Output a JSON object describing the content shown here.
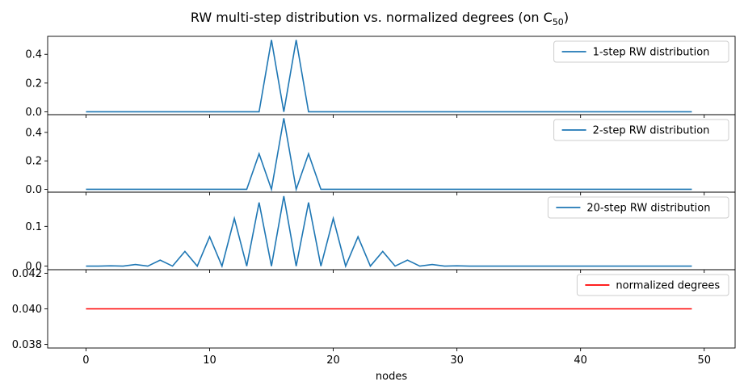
{
  "title": "RW multi-step distribution vs. normalized degrees (on C",
  "title_subscript": "50",
  "title_close": ")",
  "xlabel": "nodes",
  "x_ticks": [
    0,
    10,
    20,
    30,
    40,
    50
  ],
  "x_range": [
    -3.1,
    52.5
  ],
  "chart_data": [
    {
      "type": "line",
      "title": "",
      "xlabel": "",
      "ylabel": "",
      "legend_position": "upper-right",
      "ylim": [
        -0.02,
        0.525
      ],
      "y_ticks": [
        0.0,
        0.2,
        0.4
      ],
      "y_tick_labels": [
        "0.0",
        "0.2",
        "0.4"
      ],
      "series": [
        {
          "name": "1-step RW distribution",
          "color": "#1f77b4",
          "x": [
            0,
            1,
            2,
            3,
            4,
            5,
            6,
            7,
            8,
            9,
            10,
            11,
            12,
            13,
            14,
            15,
            16,
            17,
            18,
            19,
            20,
            21,
            22,
            23,
            24,
            25,
            26,
            27,
            28,
            29,
            30,
            31,
            32,
            33,
            34,
            35,
            36,
            37,
            38,
            39,
            40,
            41,
            42,
            43,
            44,
            45,
            46,
            47,
            48,
            49
          ],
          "values": [
            0,
            0,
            0,
            0,
            0,
            0,
            0,
            0,
            0,
            0,
            0,
            0,
            0,
            0,
            0,
            0.5,
            0,
            0.5,
            0,
            0,
            0,
            0,
            0,
            0,
            0,
            0,
            0,
            0,
            0,
            0,
            0,
            0,
            0,
            0,
            0,
            0,
            0,
            0,
            0,
            0,
            0,
            0,
            0,
            0,
            0,
            0,
            0,
            0,
            0,
            0
          ]
        }
      ]
    },
    {
      "type": "line",
      "title": "",
      "xlabel": "",
      "ylabel": "",
      "legend_position": "upper-right",
      "ylim": [
        -0.02,
        0.525
      ],
      "y_ticks": [
        0.0,
        0.2,
        0.4
      ],
      "y_tick_labels": [
        "0.0",
        "0.2",
        "0.4"
      ],
      "series": [
        {
          "name": "2-step RW distribution",
          "color": "#1f77b4",
          "x": [
            0,
            1,
            2,
            3,
            4,
            5,
            6,
            7,
            8,
            9,
            10,
            11,
            12,
            13,
            14,
            15,
            16,
            17,
            18,
            19,
            20,
            21,
            22,
            23,
            24,
            25,
            26,
            27,
            28,
            29,
            30,
            31,
            32,
            33,
            34,
            35,
            36,
            37,
            38,
            39,
            40,
            41,
            42,
            43,
            44,
            45,
            46,
            47,
            48,
            49
          ],
          "values": [
            0,
            0,
            0,
            0,
            0,
            0,
            0,
            0,
            0,
            0,
            0,
            0,
            0,
            0,
            0.25,
            0,
            0.5,
            0,
            0.25,
            0,
            0,
            0,
            0,
            0,
            0,
            0,
            0,
            0,
            0,
            0,
            0,
            0,
            0,
            0,
            0,
            0,
            0,
            0,
            0,
            0,
            0,
            0,
            0,
            0,
            0,
            0,
            0,
            0,
            0,
            0
          ]
        }
      ]
    },
    {
      "type": "line",
      "title": "",
      "xlabel": "",
      "ylabel": "",
      "legend_position": "upper-right",
      "ylim": [
        -0.009,
        0.186
      ],
      "y_ticks": [
        0.0,
        0.1
      ],
      "y_tick_labels": [
        "0.0",
        "0.1"
      ],
      "series": [
        {
          "name": "20-step RW distribution",
          "color": "#1f77b4",
          "x": [
            0,
            1,
            2,
            3,
            4,
            5,
            6,
            7,
            8,
            9,
            10,
            11,
            12,
            13,
            14,
            15,
            16,
            17,
            18,
            19,
            20,
            21,
            22,
            23,
            24,
            25,
            26,
            27,
            28,
            29,
            30,
            31,
            32,
            33,
            34,
            35,
            36,
            37,
            38,
            39,
            40,
            41,
            42,
            43,
            44,
            45,
            46,
            47,
            48,
            49
          ],
          "values": [
            0,
            0,
            0.0008,
            0,
            0.004,
            0,
            0.015,
            0,
            0.037,
            0,
            0.074,
            0,
            0.12,
            0,
            0.16,
            0,
            0.176,
            0,
            0.16,
            0,
            0.12,
            0,
            0.074,
            0,
            0.037,
            0,
            0.015,
            0,
            0.004,
            0,
            0.0008,
            0,
            0,
            0,
            0,
            0,
            0,
            0,
            0,
            0,
            0,
            0,
            0,
            0,
            0,
            0,
            0,
            0,
            0,
            0
          ]
        }
      ]
    },
    {
      "type": "line",
      "title": "",
      "xlabel": "",
      "ylabel": "",
      "legend_position": "upper-right",
      "ylim": [
        0.0378,
        0.0422
      ],
      "y_ticks": [
        0.038,
        0.04,
        0.042
      ],
      "y_tick_labels": [
        "0.038",
        "0.040",
        "0.042"
      ],
      "series": [
        {
          "name": "normalized degrees",
          "color": "#ff0000",
          "x": [
            0,
            1,
            2,
            3,
            4,
            5,
            6,
            7,
            8,
            9,
            10,
            11,
            12,
            13,
            14,
            15,
            16,
            17,
            18,
            19,
            20,
            21,
            22,
            23,
            24,
            25,
            26,
            27,
            28,
            29,
            30,
            31,
            32,
            33,
            34,
            35,
            36,
            37,
            38,
            39,
            40,
            41,
            42,
            43,
            44,
            45,
            46,
            47,
            48,
            49
          ],
          "values": [
            0.04,
            0.04,
            0.04,
            0.04,
            0.04,
            0.04,
            0.04,
            0.04,
            0.04,
            0.04,
            0.04,
            0.04,
            0.04,
            0.04,
            0.04,
            0.04,
            0.04,
            0.04,
            0.04,
            0.04,
            0.04,
            0.04,
            0.04,
            0.04,
            0.04,
            0.04,
            0.04,
            0.04,
            0.04,
            0.04,
            0.04,
            0.04,
            0.04,
            0.04,
            0.04,
            0.04,
            0.04,
            0.04,
            0.04,
            0.04,
            0.04,
            0.04,
            0.04,
            0.04,
            0.04,
            0.04,
            0.04,
            0.04,
            0.04,
            0.04
          ]
        }
      ]
    }
  ]
}
